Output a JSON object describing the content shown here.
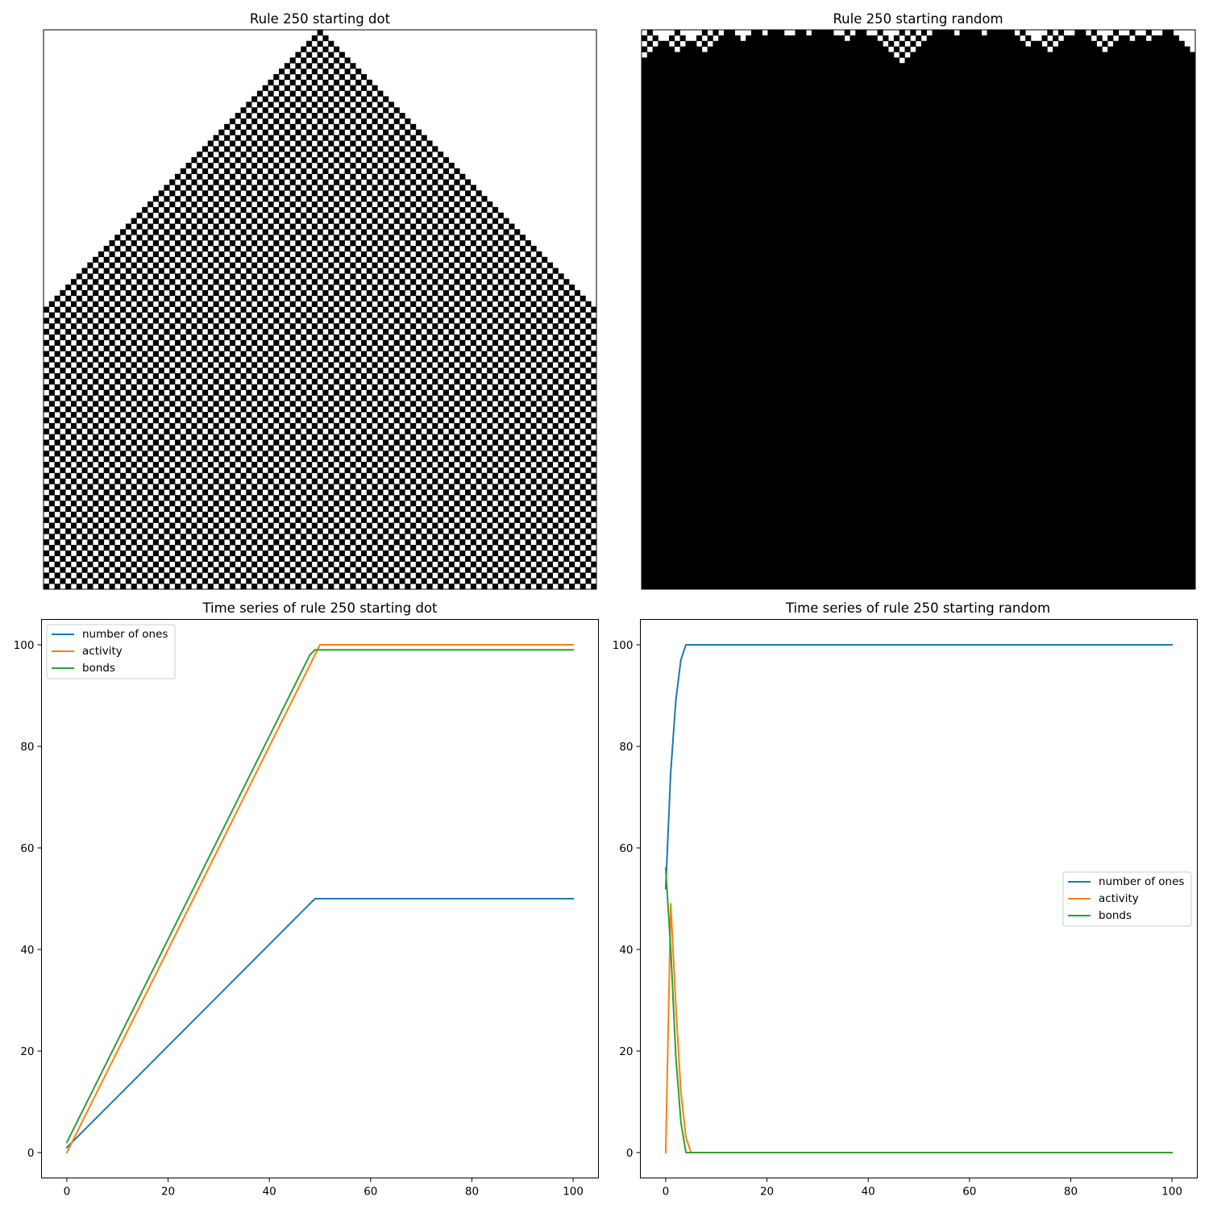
{
  "chart_data": [
    {
      "type": "heatmap",
      "title": "Rule 250 starting dot",
      "grid_size": 101,
      "initial_condition": "dot",
      "rule": 250
    },
    {
      "type": "heatmap",
      "title": "Rule 250 starting random",
      "grid_size": 101,
      "initial_condition": "random",
      "rule": 250
    },
    {
      "type": "line",
      "title": "Time series of rule 250 starting dot",
      "xlim": [
        -5,
        105
      ],
      "ylim": [
        -5,
        105
      ],
      "xticks": [
        0,
        20,
        40,
        60,
        80,
        100
      ],
      "yticks": [
        0,
        20,
        40,
        60,
        80,
        100
      ],
      "legend": "top-left",
      "series": [
        {
          "name": "number of ones",
          "color": "#1f77b4",
          "points": [
            [
              0,
              1
            ],
            [
              49,
              50
            ],
            [
              100,
              50
            ]
          ]
        },
        {
          "name": "activity",
          "color": "#ff7f0e",
          "points": [
            [
              0,
              0
            ],
            [
              1,
              2
            ],
            [
              48,
              96
            ],
            [
              49,
              98
            ],
            [
              50,
              100
            ],
            [
              100,
              100
            ]
          ]
        },
        {
          "name": "bonds",
          "color": "#2ca02c",
          "points": [
            [
              0,
              2
            ],
            [
              48,
              98
            ],
            [
              49,
              99
            ],
            [
              100,
              99
            ]
          ]
        }
      ]
    },
    {
      "type": "line",
      "title": "Time series of rule 250 starting random",
      "xlim": [
        -5,
        105
      ],
      "ylim": [
        -5,
        105
      ],
      "xticks": [
        0,
        20,
        40,
        60,
        80,
        100
      ],
      "yticks": [
        0,
        20,
        40,
        60,
        80,
        100
      ],
      "legend": "center-right",
      "series": [
        {
          "name": "number of ones",
          "color": "#1f77b4",
          "points": [
            [
              0,
              52
            ],
            [
              1,
              75
            ],
            [
              2,
              89
            ],
            [
              3,
              97
            ],
            [
              4,
              100
            ],
            [
              100,
              100
            ]
          ]
        },
        {
          "name": "activity",
          "color": "#ff7f0e",
          "points": [
            [
              0,
              0
            ],
            [
              1,
              49
            ],
            [
              2,
              29
            ],
            [
              3,
              12
            ],
            [
              4,
              3
            ],
            [
              5,
              0
            ],
            [
              100,
              0
            ]
          ]
        },
        {
          "name": "bonds",
          "color": "#2ca02c",
          "points": [
            [
              0,
              56
            ],
            [
              1,
              40
            ],
            [
              2,
              19
            ],
            [
              3,
              6
            ],
            [
              4,
              0
            ],
            [
              100,
              0
            ]
          ]
        }
      ]
    }
  ]
}
